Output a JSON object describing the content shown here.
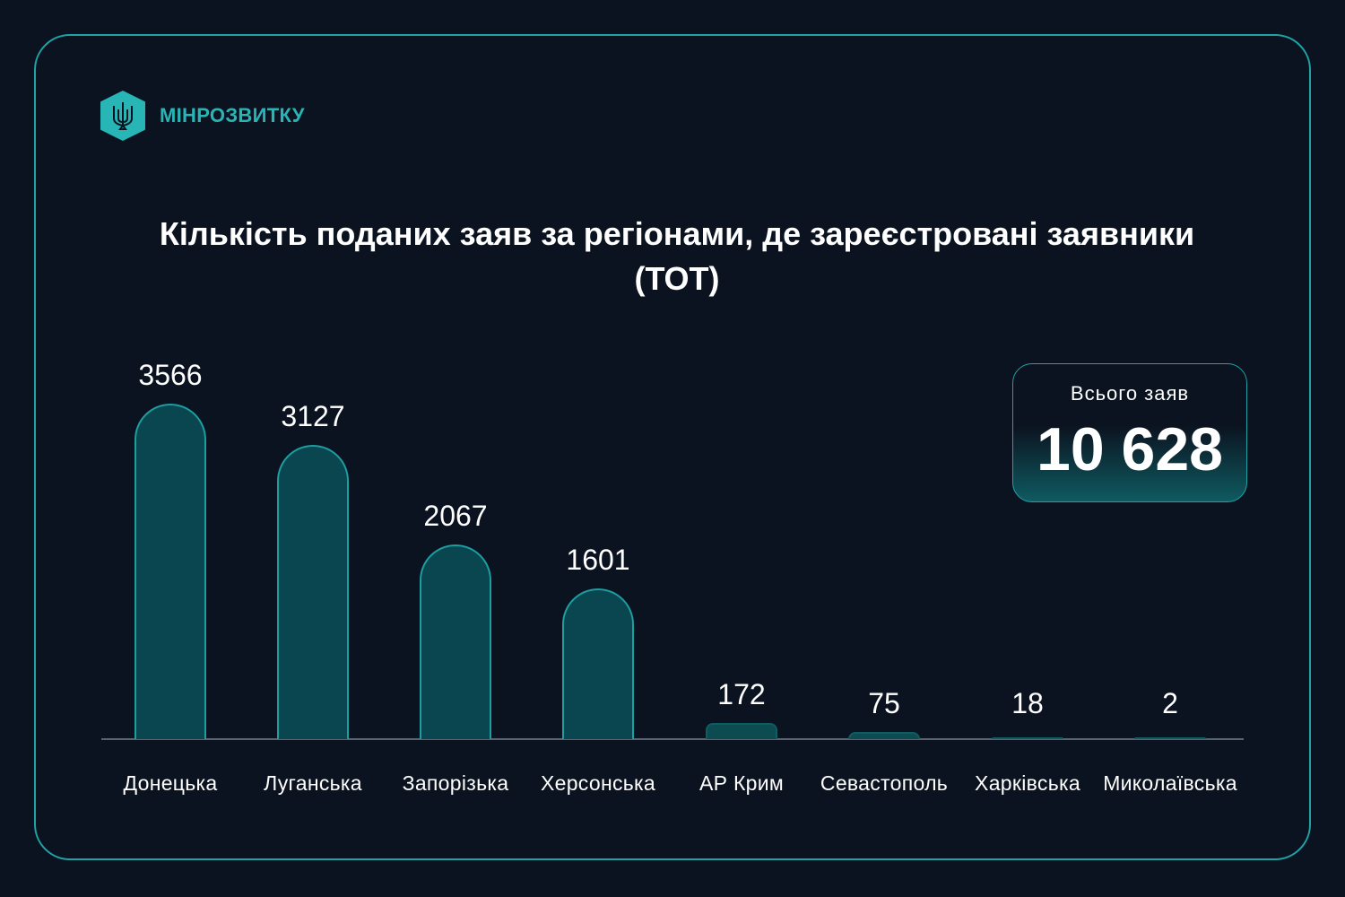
{
  "logo": {
    "text": "МІНРОЗВИТКУ",
    "icon": "trident-icon"
  },
  "title": "Кількість поданих заяв за регіонами, де зареєстровані заявники (ТОТ)",
  "total": {
    "label": "Всього заяв",
    "value": "10 628"
  },
  "colors": {
    "background": "#0b1320",
    "accent": "#1fa3a6",
    "bar_fill": "#0a4650",
    "text": "#ffffff"
  },
  "chart_data": {
    "type": "bar",
    "title": "Кількість поданих заяв за регіонами, де зареєстровані заявники (ТОТ)",
    "categories": [
      "Донецька",
      "Луганська",
      "Запорізька",
      "Херсонська",
      "АР Крим",
      "Севастополь",
      "Харківська",
      "Миколаївська"
    ],
    "values": [
      3566,
      3127,
      2067,
      1601,
      172,
      75,
      18,
      2
    ],
    "xlabel": "",
    "ylabel": "",
    "grid": false,
    "legend": null,
    "annotations": [
      {
        "label": "Всього заяв",
        "value": "10 628"
      }
    ]
  }
}
